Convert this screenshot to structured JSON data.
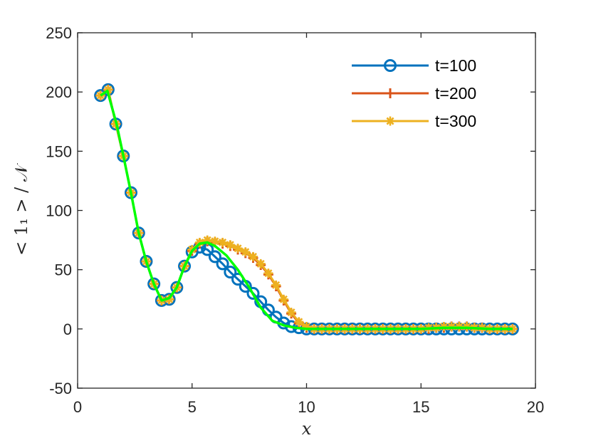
{
  "chart_data": {
    "type": "line",
    "xlabel": "x",
    "ylabel": "< 1₁ > / 𝒩",
    "xlim": [
      0,
      20
    ],
    "ylim": [
      -50,
      250
    ],
    "xticks": [
      "0",
      "5",
      "10",
      "15",
      "20"
    ],
    "yticks": [
      "-50",
      "0",
      "50",
      "100",
      "150",
      "200",
      "250"
    ],
    "xtick_values": [
      0,
      5,
      10,
      15,
      20
    ],
    "ytick_values": [
      -50,
      0,
      50,
      100,
      150,
      200,
      250
    ],
    "grid": false,
    "legend_position": "top-right",
    "series": [
      {
        "name": "t=100",
        "color": "#0072BD",
        "marker": "circle",
        "x": [
          1.0,
          1.333,
          1.667,
          2.0,
          2.333,
          2.667,
          3.0,
          3.333,
          3.667,
          4.0,
          4.333,
          4.667,
          5.0,
          5.333,
          5.667,
          6.0,
          6.333,
          6.667,
          7.0,
          7.333,
          7.667,
          8.0,
          8.333,
          8.667,
          9.0,
          9.333,
          9.667,
          10.0,
          10.333,
          10.667,
          11.0,
          11.333,
          11.667,
          12.0,
          12.333,
          12.667,
          13.0,
          13.333,
          13.667,
          14.0,
          14.333,
          14.667,
          15.0,
          15.333,
          15.667,
          16.0,
          16.333,
          16.667,
          17.0,
          17.333,
          17.667,
          18.0,
          18.333,
          18.667,
          19.0
        ],
        "y": [
          197,
          202,
          173,
          146,
          115,
          81,
          57,
          38,
          24,
          25,
          35,
          53,
          65,
          69,
          67,
          61,
          55,
          48,
          42,
          36,
          30,
          23,
          16,
          10,
          5,
          2,
          1,
          0,
          0,
          0,
          0,
          0,
          0,
          0,
          0,
          0,
          0,
          0,
          0,
          0,
          0,
          0,
          0,
          0,
          0,
          0,
          0,
          0,
          0,
          0,
          0,
          0,
          0,
          0,
          0
        ]
      },
      {
        "name": "t=200",
        "color": "#D95319",
        "marker": "plus",
        "x": [
          1.0,
          1.333,
          1.667,
          2.0,
          2.333,
          2.667,
          3.0,
          3.333,
          3.667,
          4.0,
          4.333,
          4.667,
          5.0,
          5.333,
          5.667,
          6.0,
          6.333,
          6.667,
          7.0,
          7.333,
          7.667,
          8.0,
          8.333,
          8.667,
          9.0,
          9.333,
          9.667,
          10.0,
          10.333,
          10.667,
          11.0,
          11.333,
          11.667,
          12.0,
          12.333,
          12.667,
          13.0,
          13.333,
          13.667,
          14.0,
          14.333,
          14.667,
          15.0,
          15.333,
          15.667,
          16.0,
          16.333,
          16.667,
          17.0,
          17.333,
          17.667,
          18.0,
          18.333,
          18.667,
          19.0
        ],
        "y": [
          197,
          202,
          173,
          146,
          115,
          81,
          57,
          38,
          24,
          25,
          35,
          53,
          66,
          72,
          74,
          73,
          72,
          70,
          67,
          64,
          60,
          54,
          46,
          36,
          24,
          13,
          5,
          1,
          0,
          0,
          0,
          0,
          0,
          0,
          0,
          0,
          0,
          0,
          0,
          0,
          0,
          0,
          0,
          0,
          1,
          1,
          2,
          2,
          2,
          1,
          1,
          0,
          0,
          0,
          0
        ]
      },
      {
        "name": "t=300",
        "color": "#EDB120",
        "marker": "asterisk",
        "x": [
          1.0,
          1.333,
          1.667,
          2.0,
          2.333,
          2.667,
          3.0,
          3.333,
          3.667,
          4.0,
          4.333,
          4.667,
          5.0,
          5.333,
          5.667,
          6.0,
          6.333,
          6.667,
          7.0,
          7.333,
          7.667,
          8.0,
          8.333,
          8.667,
          9.0,
          9.333,
          9.667,
          10.0,
          10.333,
          10.667,
          11.0,
          11.333,
          11.667,
          12.0,
          12.333,
          12.667,
          13.0,
          13.333,
          13.667,
          14.0,
          14.333,
          14.667,
          15.0,
          15.333,
          15.667,
          16.0,
          16.333,
          16.667,
          17.0,
          17.333,
          17.667,
          18.0,
          18.333,
          18.667,
          19.0
        ],
        "y": [
          197,
          202,
          173,
          146,
          115,
          81,
          57,
          38,
          24,
          25,
          35,
          53,
          67,
          73,
          75,
          74,
          73,
          71,
          68,
          65,
          61,
          55,
          47,
          37,
          25,
          14,
          6,
          2,
          0,
          0,
          0,
          0,
          0,
          0,
          0,
          0,
          0,
          0,
          0,
          0,
          0,
          0,
          0,
          1,
          1,
          2,
          2,
          2,
          2,
          1,
          1,
          0,
          0,
          0,
          0
        ]
      },
      {
        "color": "#00FF00",
        "marker": "none",
        "x": [
          1.0,
          1.3,
          1.7,
          2.0,
          2.33,
          2.67,
          3.0,
          3.33,
          3.67,
          4.0,
          4.33,
          4.67,
          5.0,
          5.33,
          5.67,
          6.0,
          6.5,
          7.0,
          7.5,
          8.0,
          8.5,
          9.0,
          9.5,
          10.0,
          10.5,
          11.0,
          12.0,
          13.0,
          14.0,
          15.0,
          16.0,
          17.0,
          18.0,
          19.0
        ],
        "y": [
          197,
          201,
          173,
          146,
          115,
          81,
          57,
          38,
          24,
          26,
          35,
          53,
          66,
          72,
          73,
          70,
          62,
          50,
          35,
          18,
          7,
          3,
          1,
          0,
          0,
          0,
          0,
          0,
          0,
          0,
          1,
          1,
          0,
          0
        ]
      }
    ]
  }
}
